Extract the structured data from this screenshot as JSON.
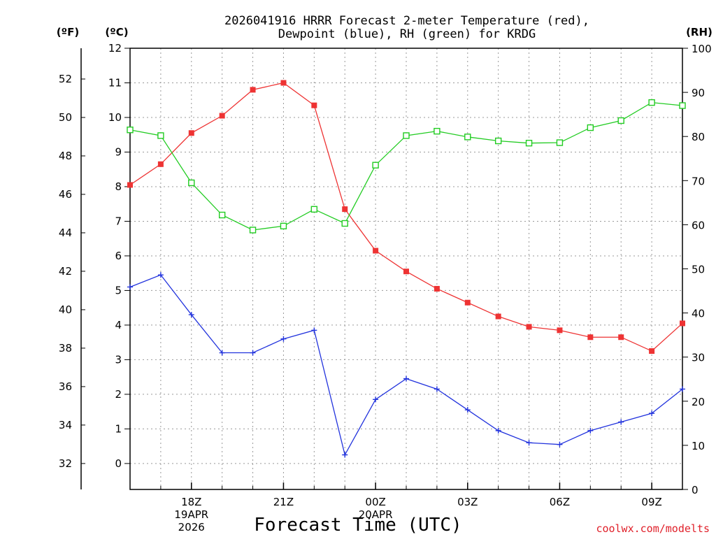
{
  "chart_data": {
    "type": "line",
    "title_lines": [
      "2026041916 HRRR Forecast 2-meter Temperature (red),",
      "Dewpoint (blue), RH (green) for KRDG"
    ],
    "xlabel": "Forecast Time (UTC)",
    "credit": "coolwx.com/modelts",
    "unit_labels": {
      "fahrenheit": "(ºF)",
      "celsius": "(ºC)",
      "rh": "(RH)"
    },
    "x_range": [
      16,
      34
    ],
    "y_celsius_range": [
      -0.75,
      12
    ],
    "y_rh_range": [
      0,
      100
    ],
    "celsius_ticks": [
      "0",
      "1",
      "2",
      "3",
      "4",
      "5",
      "6",
      "7",
      "8",
      "9",
      "10",
      "11",
      "12"
    ],
    "fahrenheit_ticks": [
      "32",
      "34",
      "36",
      "38",
      "40",
      "42",
      "44",
      "46",
      "48",
      "50",
      "52"
    ],
    "rh_ticks": [
      "0",
      "10",
      "20",
      "30",
      "40",
      "50",
      "60",
      "70",
      "80",
      "90",
      "100"
    ],
    "x_ticks": [
      {
        "x": 18,
        "label": "18Z",
        "sub": [
          "19APR",
          "2026"
        ]
      },
      {
        "x": 21,
        "label": "21Z",
        "sub": []
      },
      {
        "x": 24,
        "label": "00Z",
        "sub": [
          "20APR"
        ]
      },
      {
        "x": 27,
        "label": "03Z",
        "sub": []
      },
      {
        "x": 30,
        "label": "06Z",
        "sub": []
      },
      {
        "x": 33,
        "label": "09Z",
        "sub": []
      }
    ],
    "x": [
      16,
      17,
      18,
      19,
      20,
      21,
      22,
      23,
      24,
      25,
      26,
      27,
      28,
      29,
      30,
      31,
      32,
      33,
      34
    ],
    "series": [
      {
        "name": "Temperature",
        "axis": "celsius",
        "color": "#ee3333",
        "marker": "filled-square",
        "values": [
          8.05,
          8.65,
          9.55,
          10.05,
          10.8,
          11.0,
          10.35,
          7.35,
          6.15,
          5.55,
          5.05,
          4.65,
          4.25,
          3.95,
          3.85,
          3.65,
          3.65,
          3.25,
          4.05
        ]
      },
      {
        "name": "Dewpoint",
        "axis": "celsius",
        "color": "#2233dd",
        "marker": "plus",
        "values": [
          5.1,
          5.45,
          4.3,
          3.2,
          3.2,
          3.6,
          3.85,
          0.25,
          1.85,
          2.45,
          2.15,
          1.55,
          0.95,
          0.6,
          0.55,
          0.95,
          1.2,
          1.45,
          2.15
        ]
      },
      {
        "name": "RH",
        "axis": "rh",
        "color": "#22cc22",
        "marker": "open-square",
        "values": [
          81.5,
          80.2,
          69.5,
          62.2,
          58.8,
          59.7,
          63.5,
          60.3,
          73.5,
          80.2,
          81.2,
          79.9,
          79.0,
          78.5,
          78.6,
          82.0,
          83.6,
          87.7,
          87.0
        ]
      }
    ]
  }
}
